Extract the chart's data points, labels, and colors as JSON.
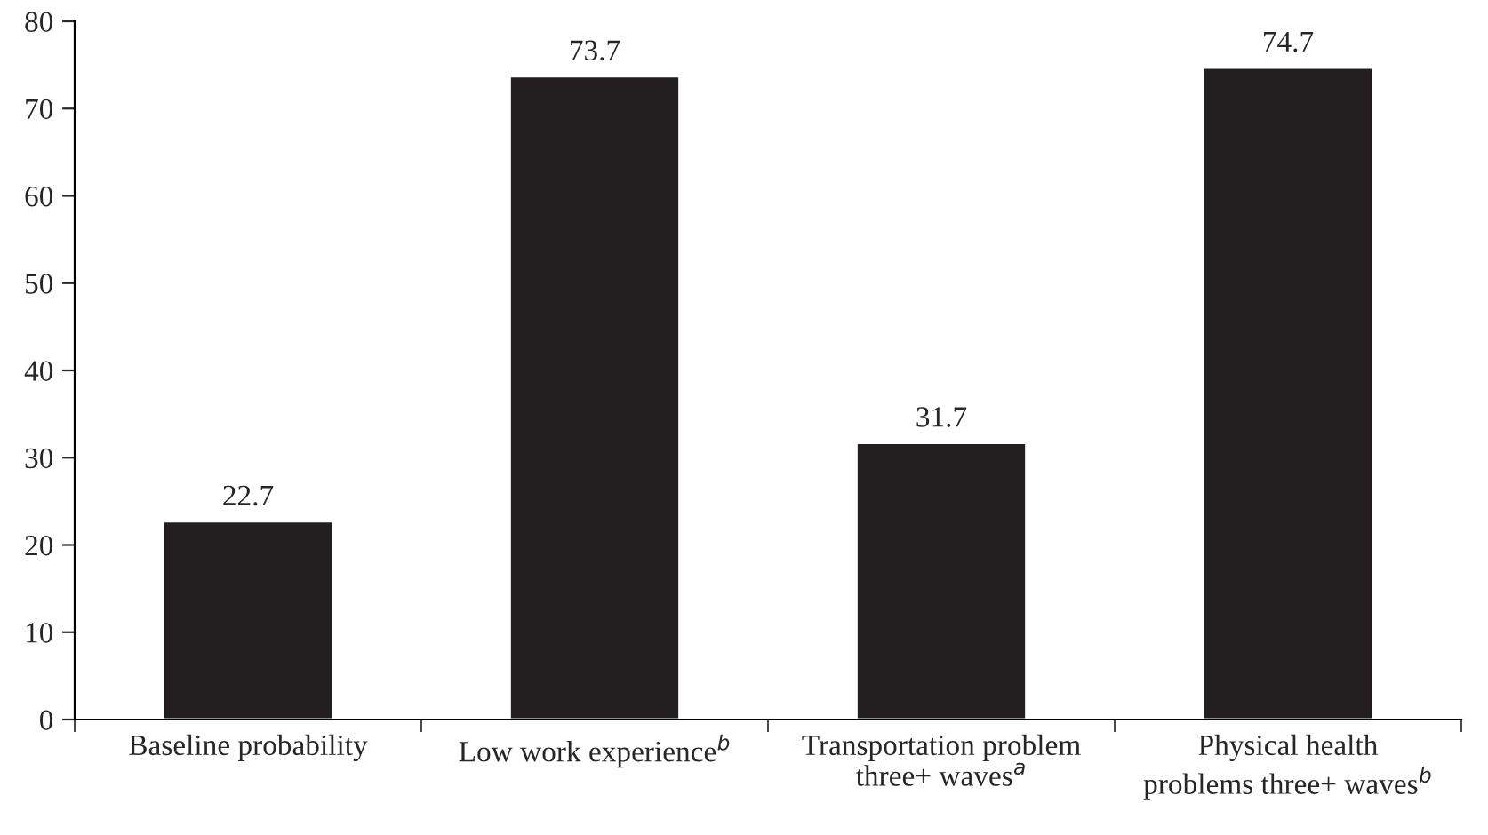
{
  "chart_data": {
    "type": "bar",
    "categories": [
      "Baseline probability",
      "Low work experience$^{b}$",
      "Transportation problem\nthree+ waves$^{a}$",
      "Physical health\nproblems three+ waves$^{b}$"
    ],
    "values": [
      22.7,
      73.7,
      31.7,
      74.7
    ],
    "color": "#231f20",
    "ylim": [
      0,
      80
    ],
    "yticks": [
      0,
      10,
      20,
      30,
      40,
      50,
      60,
      70,
      80
    ],
    "data_labels": true,
    "grid": false,
    "legend": false
  }
}
